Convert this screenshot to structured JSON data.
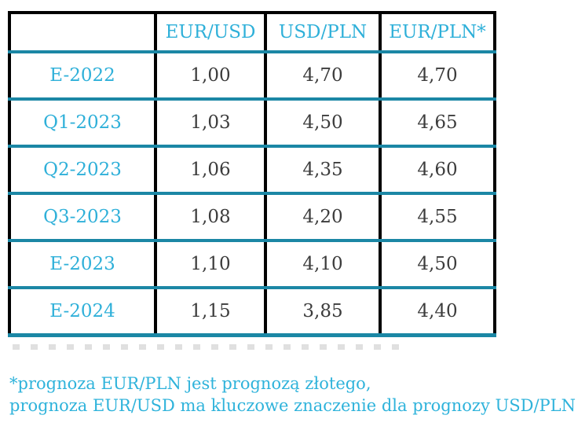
{
  "chart_data": {
    "type": "table",
    "title": "",
    "columns": [
      "",
      "EUR/USD",
      "USD/PLN",
      "EUR/PLN*"
    ],
    "rows": [
      [
        "E-2022",
        "1,00",
        "4,70",
        "4,70"
      ],
      [
        "Q1-2023",
        "1,03",
        "4,50",
        "4,65"
      ],
      [
        "Q2-2023",
        "1,06",
        "4,35",
        "4,60"
      ],
      [
        "Q3-2023",
        "1,08",
        "4,20",
        "4,55"
      ],
      [
        "E-2023",
        "1,10",
        "4,10",
        "4,50"
      ],
      [
        "E-2024",
        "1,15",
        "3,85",
        "4,40"
      ]
    ]
  },
  "footnote": {
    "line1": "*prognoza EUR/PLN jest prognozą złotego,",
    "line2": "prognoza EUR/USD ma kluczowe znaczenie dla prognozy USD/PLN"
  },
  "colors": {
    "accent_text": "#2fb0d9",
    "row_rule": "#1b87a5",
    "outer_border": "#000000",
    "value_text": "#3c3c3c"
  }
}
